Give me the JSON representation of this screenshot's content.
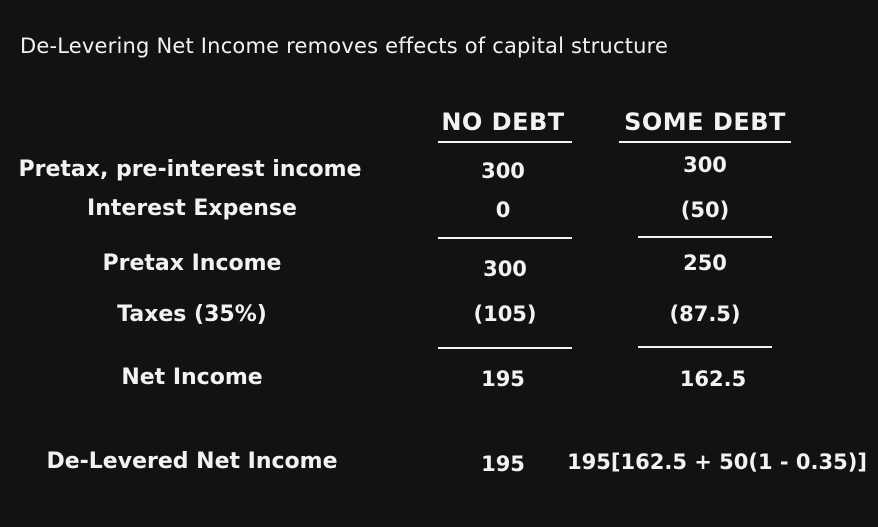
{
  "slide": {
    "title": "De-Levering Net Income removes effects of capital structure",
    "columns": {
      "no_debt": "NO DEBT",
      "some_debt": "SOME DEBT"
    },
    "rows": {
      "pretax_pre_interest": {
        "label": "Pretax, pre-interest income",
        "no_debt": "300",
        "some_debt": "300"
      },
      "interest_expense": {
        "label": "Interest Expense",
        "no_debt": "0",
        "some_debt": "(50)"
      },
      "pretax_income": {
        "label": "Pretax Income",
        "no_debt": "300",
        "some_debt": "250"
      },
      "taxes": {
        "label": "Taxes (35%)",
        "no_debt": "(105)",
        "some_debt": "(87.5)"
      },
      "net_income": {
        "label": "Net Income",
        "no_debt": "195",
        "some_debt": "162.5"
      },
      "delevered": {
        "label": "De-Levered Net Income",
        "no_debt": "195",
        "some_debt": "195[162.5 + 50(1 - 0.35)]"
      }
    },
    "colors": {
      "background": "#121212",
      "text": "#f2f2f2"
    }
  }
}
